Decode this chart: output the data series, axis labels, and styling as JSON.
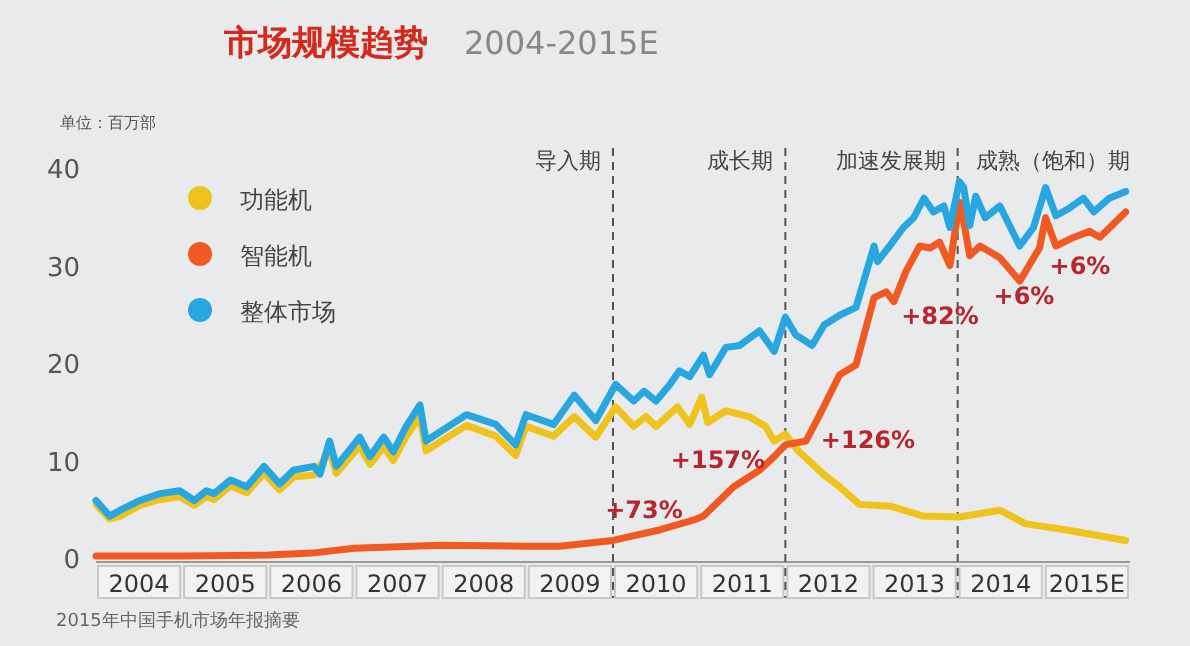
{
  "chart_data": {
    "type": "line",
    "title": "市场规模趋势",
    "subtitle": "2004-2015E",
    "ylabel": "单位：百万部",
    "xlim": [
      2004,
      2016
    ],
    "ylim": [
      0,
      40
    ],
    "yticks": [
      0,
      10,
      20,
      30,
      40
    ],
    "xticks": [
      {
        "value": 2004.5,
        "label": "2004"
      },
      {
        "value": 2005.5,
        "label": "2005"
      },
      {
        "value": 2006.5,
        "label": "2006"
      },
      {
        "value": 2007.5,
        "label": "2007"
      },
      {
        "value": 2008.5,
        "label": "2008"
      },
      {
        "value": 2009.5,
        "label": "2009"
      },
      {
        "value": 2010.5,
        "label": "2010"
      },
      {
        "value": 2011.5,
        "label": "2011"
      },
      {
        "value": 2012.5,
        "label": "2012"
      },
      {
        "value": 2013.5,
        "label": "2013"
      },
      {
        "value": 2014.5,
        "label": "2014"
      },
      {
        "value": 2015.5,
        "label": "2015E"
      }
    ],
    "legend": "top left",
    "line_style": "solid",
    "grid": false,
    "series": [
      {
        "name": "功能机",
        "color": "#efc21c",
        "x": [
          2004.0,
          2004.16,
          2004.28,
          2004.51,
          2004.74,
          2004.97,
          2005.14,
          2005.28,
          2005.37,
          2005.56,
          2005.75,
          2005.95,
          2006.13,
          2006.29,
          2006.53,
          2006.71,
          2006.79,
          2007.06,
          2007.18,
          2007.34,
          2007.45,
          2007.6,
          2007.76,
          2007.83,
          2008.3,
          2008.64,
          2008.87,
          2008.99,
          2009.31,
          2009.55,
          2009.8,
          2010.03,
          2010.24,
          2010.38,
          2010.5,
          2010.75,
          2010.89,
          2011.03,
          2011.1,
          2011.31,
          2011.58,
          2011.77,
          2011.87,
          2012.0,
          2012.15,
          2012.44,
          2012.63,
          2012.86,
          2013.23,
          2013.6,
          2014.02,
          2014.49,
          2014.79,
          2015.25,
          2015.95
        ],
        "values": [
          5.5,
          4.0,
          4.3,
          5.4,
          6.0,
          6.3,
          5.4,
          6.3,
          6.0,
          7.4,
          6.7,
          8.7,
          7.0,
          8.3,
          8.5,
          11.0,
          8.7,
          11.5,
          9.6,
          11.4,
          10.0,
          12.5,
          14.5,
          11.0,
          13.6,
          12.5,
          10.5,
          13.5,
          12.5,
          14.5,
          12.4,
          15.5,
          13.5,
          14.5,
          13.5,
          15.5,
          13.7,
          16.5,
          13.9,
          15.1,
          14.5,
          13.5,
          12.0,
          12.7,
          11.0,
          8.6,
          7.3,
          5.5,
          5.3,
          4.3,
          4.2,
          4.9,
          3.5,
          2.9,
          1.8
        ]
      },
      {
        "name": "智能机",
        "color": "#f05a22",
        "x": [
          2004.0,
          2005.0,
          2006.0,
          2006.5,
          2007.0,
          2008.0,
          2009.0,
          2009.38,
          2010.0,
          2010.55,
          2010.94,
          2011.05,
          2011.4,
          2011.7,
          2011.87,
          2012.0,
          2012.24,
          2012.4,
          2012.63,
          2012.82,
          2013.03,
          2013.17,
          2013.26,
          2013.4,
          2013.56,
          2013.68,
          2013.79,
          2013.91,
          2014.02,
          2014.07,
          2014.14,
          2014.26,
          2014.49,
          2014.72,
          2014.95,
          2015.02,
          2015.14,
          2015.35,
          2015.53,
          2015.65,
          2015.95
        ],
        "values": [
          0.2,
          0.2,
          0.3,
          0.5,
          1.0,
          1.3,
          1.2,
          1.2,
          1.8,
          2.9,
          3.9,
          4.3,
          7.3,
          9.0,
          10.4,
          11.6,
          12.0,
          14.7,
          18.8,
          19.8,
          26.7,
          27.3,
          26.3,
          29.4,
          32.0,
          31.8,
          32.4,
          30.0,
          36.5,
          34.5,
          31.0,
          32.0,
          30.8,
          28.4,
          31.8,
          34.9,
          32.0,
          32.9,
          33.5,
          32.9,
          35.5
        ]
      },
      {
        "name": "整体市场",
        "color": "#27a6df",
        "x": [
          2004.0,
          2004.16,
          2004.28,
          2004.51,
          2004.74,
          2004.97,
          2005.14,
          2005.28,
          2005.37,
          2005.56,
          2005.75,
          2005.95,
          2006.13,
          2006.29,
          2006.53,
          2006.6,
          2006.71,
          2006.79,
          2007.06,
          2007.18,
          2007.34,
          2007.45,
          2007.6,
          2007.76,
          2007.83,
          2008.3,
          2008.64,
          2008.87,
          2008.99,
          2009.31,
          2009.55,
          2009.8,
          2010.03,
          2010.24,
          2010.36,
          2010.5,
          2010.66,
          2010.77,
          2010.89,
          2011.05,
          2011.12,
          2011.31,
          2011.47,
          2011.7,
          2011.87,
          2012.0,
          2012.12,
          2012.31,
          2012.45,
          2012.63,
          2012.82,
          2013.03,
          2013.07,
          2013.21,
          2013.37,
          2013.49,
          2013.61,
          2013.72,
          2013.84,
          2013.91,
          2014.02,
          2014.07,
          2014.14,
          2014.21,
          2014.32,
          2014.49,
          2014.72,
          2014.88,
          2015.02,
          2015.14,
          2015.3,
          2015.46,
          2015.58,
          2015.76,
          2015.95
        ],
        "values": [
          5.9,
          4.3,
          4.9,
          5.9,
          6.6,
          6.9,
          5.9,
          6.9,
          6.6,
          8.0,
          7.3,
          9.4,
          7.6,
          9.0,
          9.4,
          8.6,
          12.0,
          9.4,
          12.4,
          10.4,
          12.4,
          10.9,
          13.5,
          15.7,
          12.0,
          14.7,
          13.7,
          11.6,
          14.7,
          13.7,
          16.7,
          14.1,
          17.8,
          16.1,
          17.1,
          16.1,
          17.8,
          19.2,
          18.6,
          20.8,
          18.8,
          21.6,
          21.8,
          23.3,
          21.2,
          24.7,
          22.9,
          21.8,
          23.9,
          24.9,
          25.7,
          32.0,
          30.4,
          32.0,
          33.9,
          34.9,
          36.9,
          35.5,
          36.1,
          33.9,
          38.6,
          38.0,
          34.1,
          37.1,
          34.9,
          36.1,
          32.0,
          33.9,
          38.0,
          35.1,
          35.9,
          36.9,
          35.5,
          36.9,
          37.6
        ]
      }
    ],
    "ref_lines": [
      {
        "axis": "x",
        "value": 2010,
        "label": "导入期",
        "color": "#555555",
        "line_style": "dashed"
      },
      {
        "axis": "x",
        "value": 2012,
        "label": "成长期",
        "color": "#555555",
        "line_style": "dashed"
      },
      {
        "axis": "x",
        "value": 2014,
        "label": "加速发展期",
        "color": "#555555",
        "line_style": "dashed"
      }
    ],
    "annotations": [
      "+73%",
      "+157%",
      "+126%",
      "+82%",
      "+6%",
      "+6%",
      "成熟（饱和）期",
      "2015年中国手机市场年报摘要"
    ]
  }
}
